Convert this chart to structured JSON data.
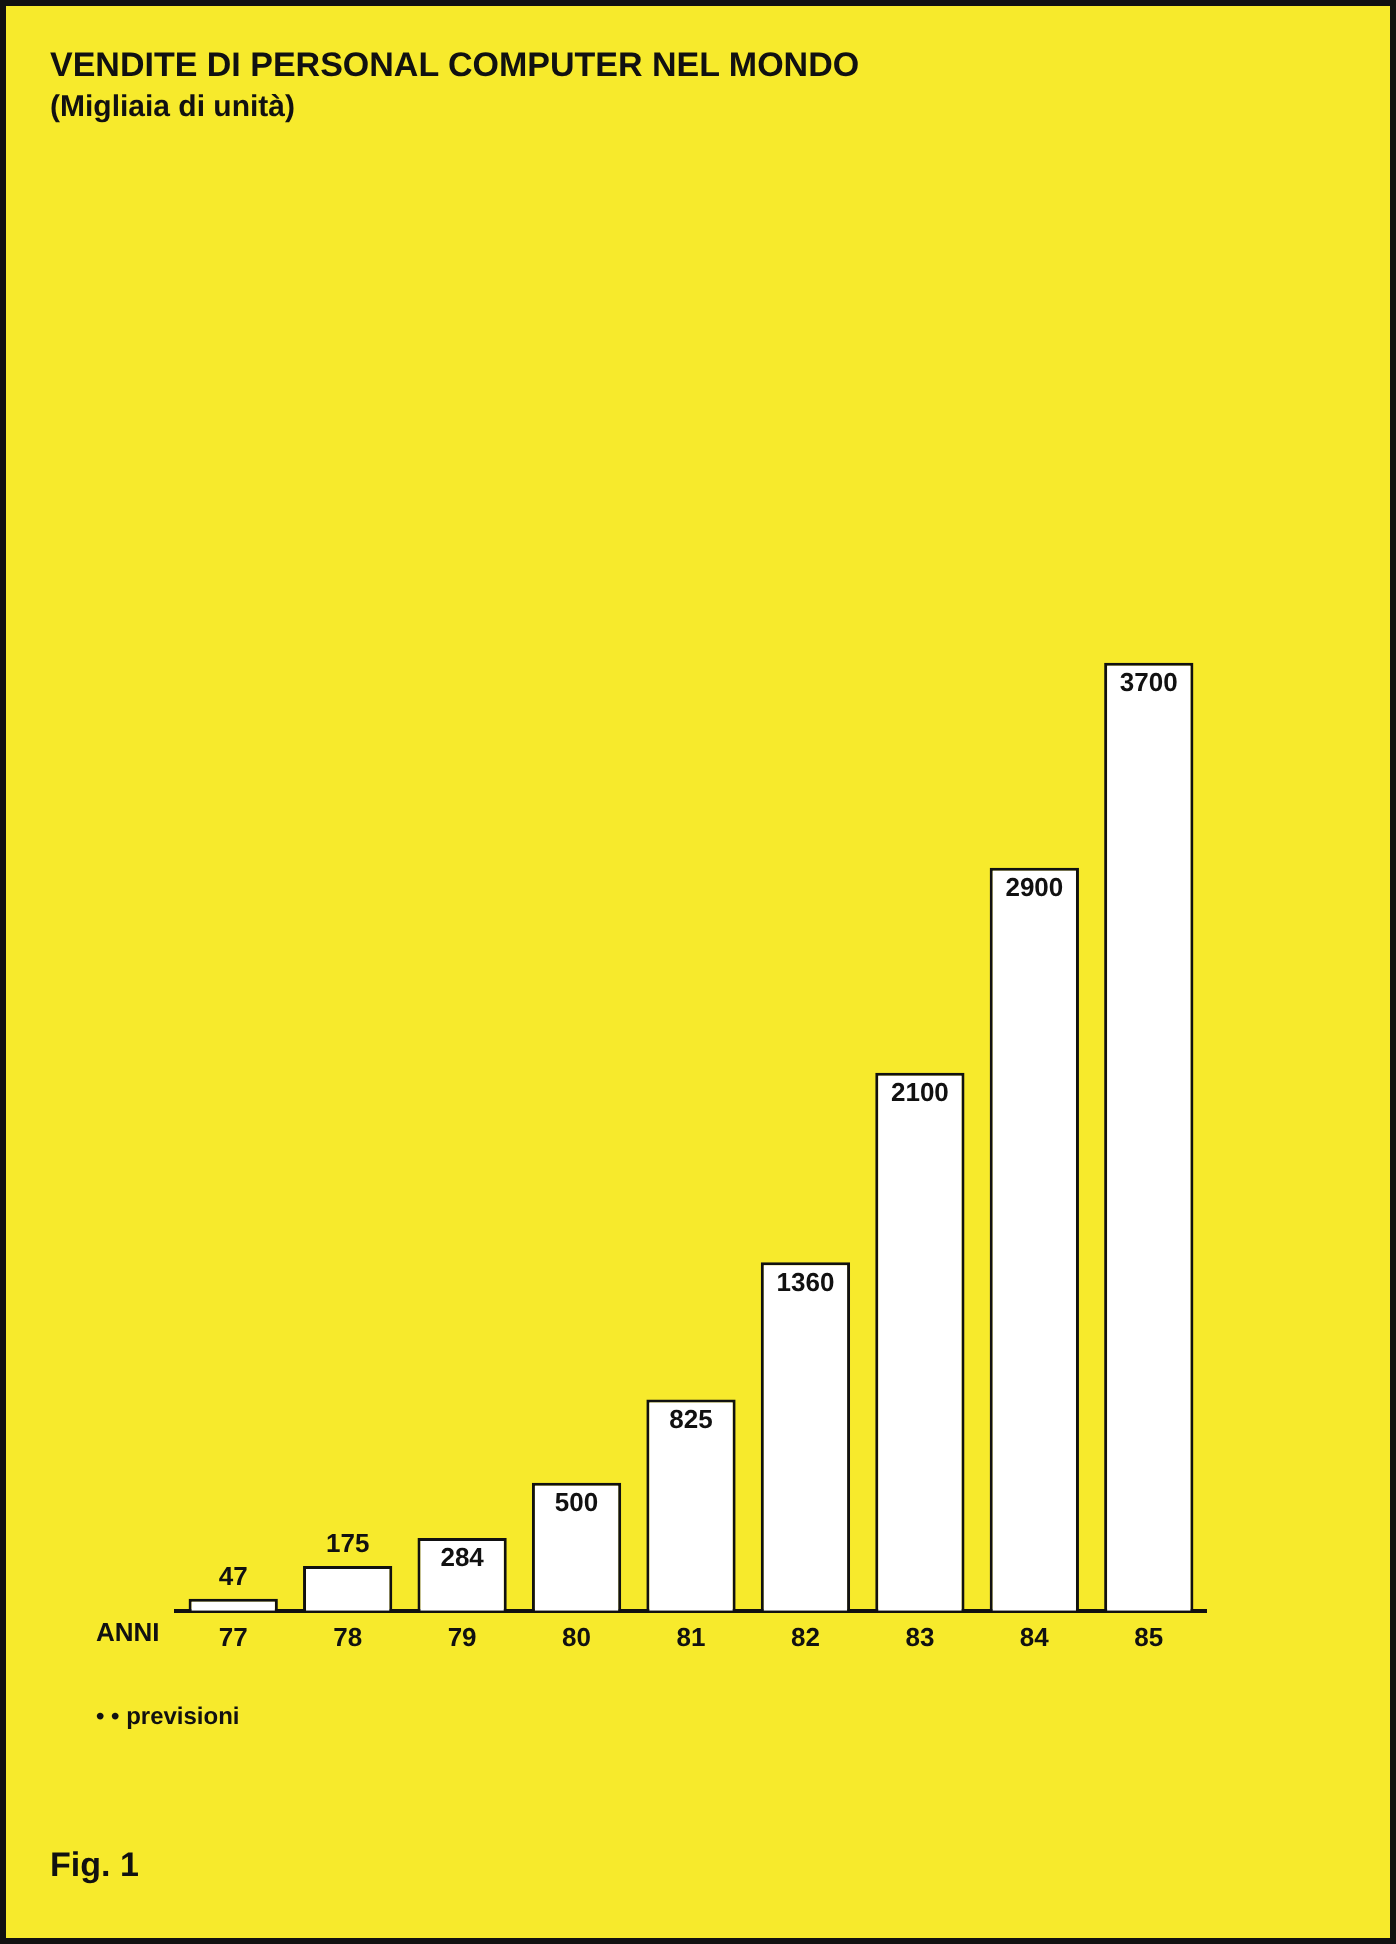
{
  "chart_data": {
    "type": "bar",
    "title": "VENDITE DI PERSONAL COMPUTER NEL MONDO",
    "subtitle": "(Migliaia di unità)",
    "xlabel": "ANNI",
    "categories": [
      "77",
      "78",
      "79",
      "80",
      "81",
      "82",
      "83",
      "84",
      "85"
    ],
    "values": [
      47,
      175,
      284,
      500,
      825,
      1360,
      2100,
      2900,
      3700
    ],
    "color": "#ffffff",
    "data_labels": true,
    "grid": false,
    "legend": false,
    "annotations": [
      "• • previsioni",
      "Fig. 1"
    ]
  }
}
